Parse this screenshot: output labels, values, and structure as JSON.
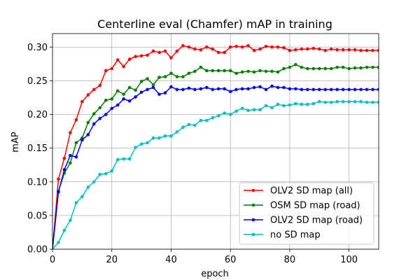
{
  "chart_data": {
    "type": "line",
    "title": "Centerline eval (Chamfer) mAP in training",
    "xlabel": "epoch",
    "ylabel": "mAP",
    "xlim": [
      0,
      110
    ],
    "ylim": [
      0,
      0.32
    ],
    "xticks": [
      0,
      20,
      40,
      60,
      80,
      100
    ],
    "xtick_labels": [
      "0",
      "20",
      "40",
      "60",
      "80",
      "100"
    ],
    "yticks": [
      0,
      0.05,
      0.1,
      0.15,
      0.2,
      0.25,
      0.3
    ],
    "ytick_labels": [
      "0.00",
      "0.05",
      "0.10",
      "0.15",
      "0.20",
      "0.25",
      "0.30"
    ],
    "grid": true,
    "legend_position": "bottom-right",
    "x": [
      0,
      2,
      4,
      6,
      8,
      10,
      12,
      14,
      16,
      18,
      20,
      22,
      24,
      26,
      28,
      30,
      32,
      34,
      36,
      38,
      40,
      42,
      44,
      46,
      48,
      50,
      52,
      54,
      56,
      58,
      60,
      62,
      64,
      66,
      68,
      70,
      72,
      74,
      76,
      78,
      80,
      82,
      84,
      86,
      88,
      90,
      92,
      94,
      96,
      98,
      100,
      102,
      104,
      106,
      108,
      110
    ],
    "series": [
      {
        "name": "OLV2 SD map (all)",
        "color": "#ff0000",
        "values": [
          0.0,
          0.104,
          0.135,
          0.173,
          0.192,
          0.219,
          0.229,
          0.237,
          0.243,
          0.265,
          0.268,
          0.281,
          0.271,
          0.282,
          0.286,
          0.287,
          0.288,
          0.294,
          0.292,
          0.294,
          0.284,
          0.294,
          0.302,
          0.3,
          0.297,
          0.296,
          0.3,
          0.297,
          0.292,
          0.292,
          0.3,
          0.301,
          0.3,
          0.302,
          0.295,
          0.297,
          0.301,
          0.3,
          0.3,
          0.299,
          0.295,
          0.296,
          0.297,
          0.297,
          0.298,
          0.297,
          0.295,
          0.297,
          0.296,
          0.296,
          0.296,
          0.296,
          0.295,
          0.295,
          0.295,
          0.295
        ]
      },
      {
        "name": "OSM SD map (road)",
        "color": "#008000",
        "values": [
          0.0,
          0.086,
          0.113,
          0.128,
          0.158,
          0.165,
          0.188,
          0.201,
          0.21,
          0.221,
          0.223,
          0.235,
          0.23,
          0.24,
          0.236,
          0.249,
          0.253,
          0.244,
          0.255,
          0.256,
          0.261,
          0.256,
          0.256,
          0.261,
          0.264,
          0.27,
          0.265,
          0.265,
          0.265,
          0.265,
          0.265,
          0.261,
          0.263,
          0.264,
          0.263,
          0.265,
          0.264,
          0.264,
          0.263,
          0.268,
          0.27,
          0.274,
          0.27,
          0.268,
          0.268,
          0.268,
          0.268,
          0.268,
          0.27,
          0.27,
          0.268,
          0.269,
          0.269,
          0.27,
          0.27,
          0.27
        ]
      },
      {
        "name": "OLV2 SD map (road)",
        "color": "#0000ff",
        "values": [
          0.0,
          0.085,
          0.118,
          0.139,
          0.137,
          0.162,
          0.17,
          0.186,
          0.194,
          0.2,
          0.209,
          0.214,
          0.223,
          0.22,
          0.226,
          0.233,
          0.237,
          0.24,
          0.23,
          0.232,
          0.241,
          0.237,
          0.237,
          0.239,
          0.237,
          0.238,
          0.24,
          0.237,
          0.238,
          0.238,
          0.234,
          0.237,
          0.238,
          0.238,
          0.24,
          0.241,
          0.237,
          0.242,
          0.24,
          0.24,
          0.238,
          0.238,
          0.237,
          0.237,
          0.237,
          0.237,
          0.237,
          0.237,
          0.237,
          0.237,
          0.237,
          0.237,
          0.237,
          0.237,
          0.237,
          0.237
        ]
      },
      {
        "name": "no SD map",
        "color": "#00bfbf",
        "values": [
          0.0,
          0.01,
          0.028,
          0.043,
          0.069,
          0.078,
          0.092,
          0.1,
          0.111,
          0.112,
          0.116,
          0.133,
          0.134,
          0.134,
          0.151,
          0.156,
          0.158,
          0.165,
          0.165,
          0.168,
          0.168,
          0.174,
          0.181,
          0.185,
          0.184,
          0.191,
          0.191,
          0.195,
          0.198,
          0.202,
          0.2,
          0.205,
          0.209,
          0.206,
          0.207,
          0.207,
          0.213,
          0.21,
          0.215,
          0.213,
          0.214,
          0.216,
          0.215,
          0.215,
          0.216,
          0.219,
          0.218,
          0.218,
          0.219,
          0.219,
          0.219,
          0.219,
          0.219,
          0.218,
          0.218,
          0.218
        ]
      }
    ]
  }
}
